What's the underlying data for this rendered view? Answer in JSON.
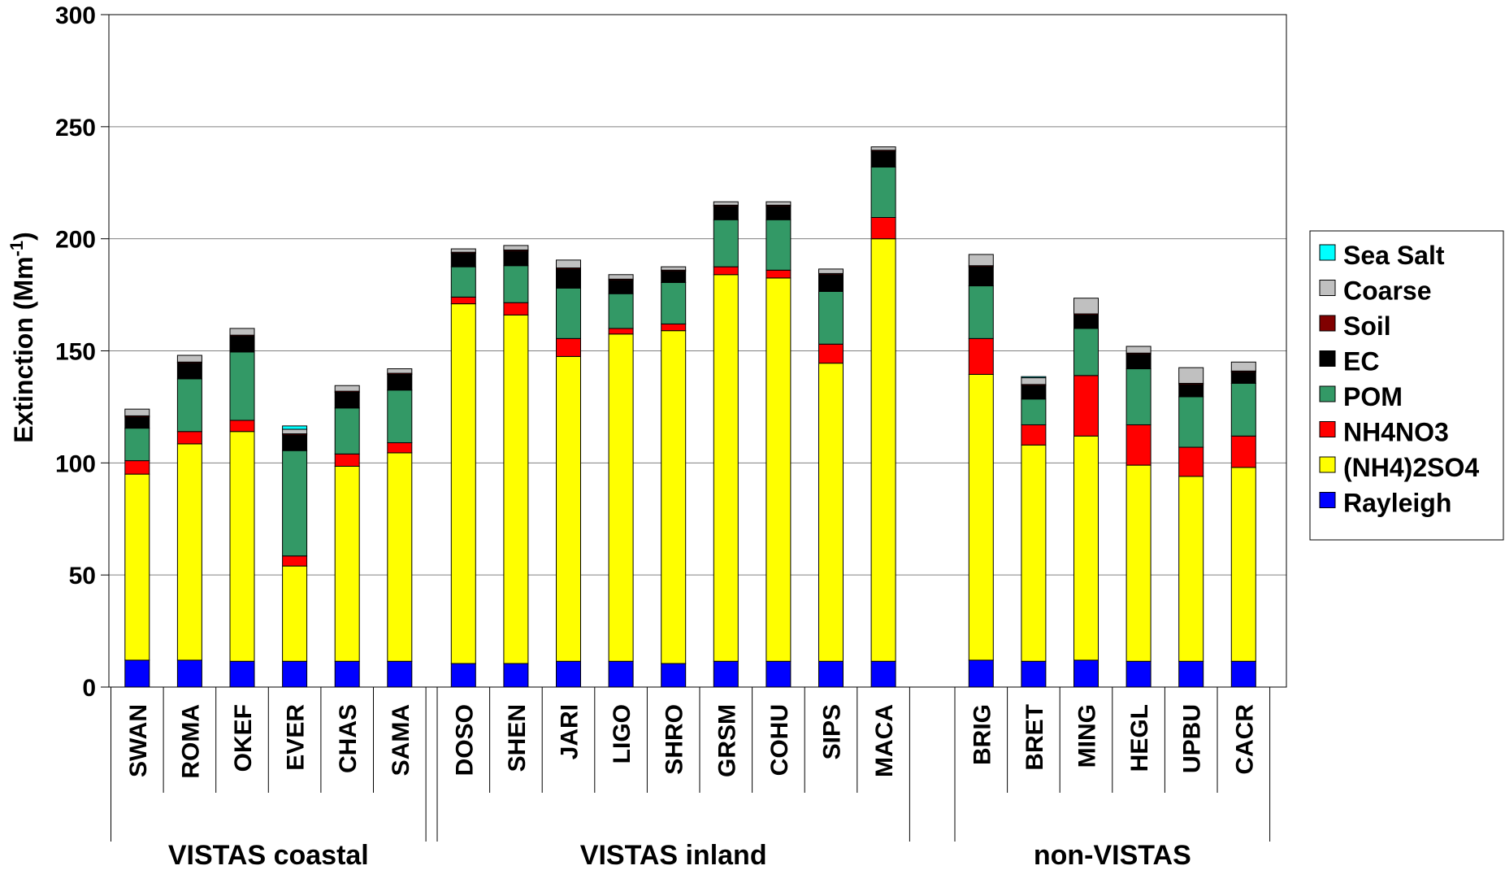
{
  "chart_data": {
    "type": "bar",
    "stacked": true,
    "title": "",
    "xlabel": "",
    "ylabel": "Extinction (Mm",
    "ylabel_superscript": "-1",
    "ylabel_suffix": ")",
    "ylim": [
      0,
      300
    ],
    "yticks": [
      0,
      50,
      100,
      150,
      200,
      250,
      300
    ],
    "grid": true,
    "legend_position": "right",
    "categories": [
      "SWAN",
      "ROMA",
      "OKEF",
      "EVER",
      "CHAS",
      "SAMA",
      "DOSO",
      "SHEN",
      "JARI",
      "LIGO",
      "SHRO",
      "GRSM",
      "COHU",
      "SIPS",
      "MACA",
      "BRIG",
      "BRET",
      "MING",
      "HEGL",
      "UPBU",
      "CACR"
    ],
    "groups": [
      {
        "label": "VISTAS coastal",
        "start": 0,
        "end": 5
      },
      {
        "label": "VISTAS inland",
        "start": 6,
        "end": 14
      },
      {
        "label": "non-VISTAS",
        "start": 15,
        "end": 20
      }
    ],
    "series": [
      {
        "name": "Rayleigh",
        "color": "#0000ff",
        "values": [
          12,
          12,
          11.5,
          11.5,
          11.5,
          11.5,
          10.5,
          10.5,
          11.5,
          11.5,
          10.5,
          11.5,
          11.5,
          11.5,
          11.5,
          12,
          11.5,
          12,
          11.5,
          11.5,
          11.5
        ]
      },
      {
        "name": "(NH4)2SO4",
        "color": "#ffff00",
        "values": [
          83,
          96.5,
          102.5,
          42.5,
          87,
          93,
          160.5,
          155.5,
          136,
          146,
          148.5,
          172.5,
          171,
          133,
          188.5,
          127.5,
          96.5,
          100,
          87.5,
          82.5,
          86.5
        ]
      },
      {
        "name": "NH4NO3",
        "color": "#ff0000",
        "values": [
          6,
          5.5,
          5,
          4.5,
          5.5,
          4.5,
          3,
          5.5,
          8,
          2.5,
          3,
          3.5,
          3.5,
          8.5,
          9.5,
          16,
          9,
          27,
          18,
          13,
          14
        ]
      },
      {
        "name": "POM",
        "color": "#339966",
        "values": [
          14.5,
          23.5,
          30.5,
          47,
          20.5,
          23.5,
          13.5,
          16.5,
          22.5,
          15.5,
          18.5,
          21,
          22.5,
          23.5,
          22.5,
          23.5,
          11.5,
          21,
          25,
          22.5,
          23.5
        ]
      },
      {
        "name": "EC",
        "color": "#000000",
        "values": [
          5,
          7,
          7,
          7,
          7,
          7,
          6,
          6.5,
          8.5,
          6,
          5,
          6,
          6,
          7.5,
          7,
          8.5,
          6,
          6,
          6.5,
          5.5,
          5
        ]
      },
      {
        "name": "Soil",
        "color": "#800000",
        "values": [
          0.5,
          0.5,
          0.5,
          0.5,
          0.5,
          0.5,
          0.5,
          0.5,
          0.5,
          0.5,
          0.5,
          0.5,
          0.5,
          0.5,
          0.5,
          0.5,
          0.5,
          0.5,
          0.5,
          0.5,
          0.5
        ]
      },
      {
        "name": "Coarse",
        "color": "#c0c0c0",
        "values": [
          3,
          3,
          3,
          2,
          2.5,
          2,
          1.5,
          2,
          3.5,
          2,
          1.5,
          1.5,
          1.5,
          2,
          1.5,
          5,
          3,
          7,
          3,
          7,
          4
        ]
      },
      {
        "name": "Sea Salt",
        "color": "#00ffff",
        "values": [
          0,
          0,
          0,
          1.5,
          0,
          0,
          0,
          0,
          0,
          0,
          0,
          0,
          0,
          0,
          0,
          0,
          0.5,
          0,
          0,
          0,
          0
        ]
      }
    ],
    "legend_order": [
      "Sea Salt",
      "Coarse",
      "Soil",
      "EC",
      "POM",
      "NH4NO3",
      "(NH4)2SO4",
      "Rayleigh"
    ]
  }
}
